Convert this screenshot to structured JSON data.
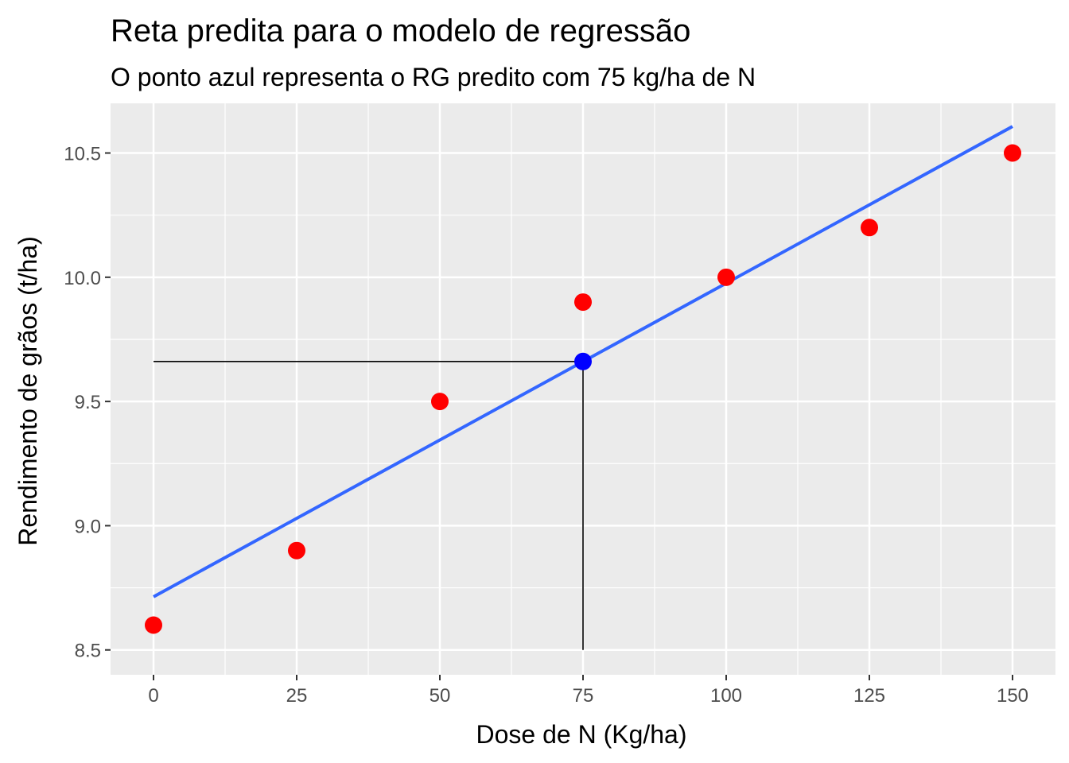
{
  "chart_data": {
    "type": "scatter",
    "title": "Reta predita para o modelo de regressão",
    "subtitle": "O ponto azul representa o RG predito com 75 kg/ha de N",
    "xlabel": "Dose de N (Kg/ha)",
    "ylabel": "Rendimento de grãos (t/ha)",
    "xlim": [
      -7.5,
      157.5
    ],
    "ylim": [
      8.4,
      10.7
    ],
    "x_ticks": [
      0,
      25,
      50,
      75,
      100,
      125,
      150
    ],
    "x_tick_labels": [
      "0",
      "25",
      "50",
      "75",
      "100",
      "125",
      "150"
    ],
    "y_ticks": [
      8.5,
      9.0,
      9.5,
      10.0,
      10.5
    ],
    "y_tick_labels": [
      "8.5",
      "9.0",
      "9.5",
      "10.0",
      "10.5"
    ],
    "grid": true,
    "panel_background": "#ebebeb",
    "series": [
      {
        "type": "scatter",
        "color": "#ff0000",
        "x": [
          0,
          25,
          50,
          75,
          100,
          125,
          150
        ],
        "y": [
          8.6,
          8.9,
          9.5,
          9.9,
          10.0,
          10.2,
          10.5
        ]
      },
      {
        "type": "line",
        "color": "#3366ff",
        "x": [
          0,
          150
        ],
        "y": [
          8.714,
          10.607
        ]
      },
      {
        "type": "scatter",
        "color": "#0000ff",
        "x": [
          75
        ],
        "y": [
          9.661
        ]
      }
    ],
    "reference_lines": {
      "color": "#000000",
      "horizontal": {
        "y": 9.661,
        "x_from": 0,
        "x_to": 75
      },
      "vertical": {
        "x": 75,
        "y_from": 8.5,
        "y_to": 9.661
      }
    }
  }
}
